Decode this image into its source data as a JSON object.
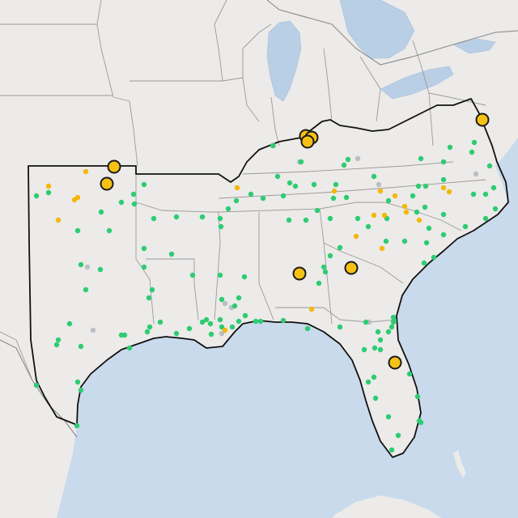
{
  "map": {
    "colors": {
      "green": "#2ecc71",
      "yellow": "#f5b70a",
      "gray": "#b9bec4",
      "large_fill": "#f5c114",
      "large_stroke": "#1b1b1b",
      "region_outline": "#111111"
    },
    "marker_categories": [
      "green",
      "yellow",
      "gray",
      "large"
    ]
  }
}
